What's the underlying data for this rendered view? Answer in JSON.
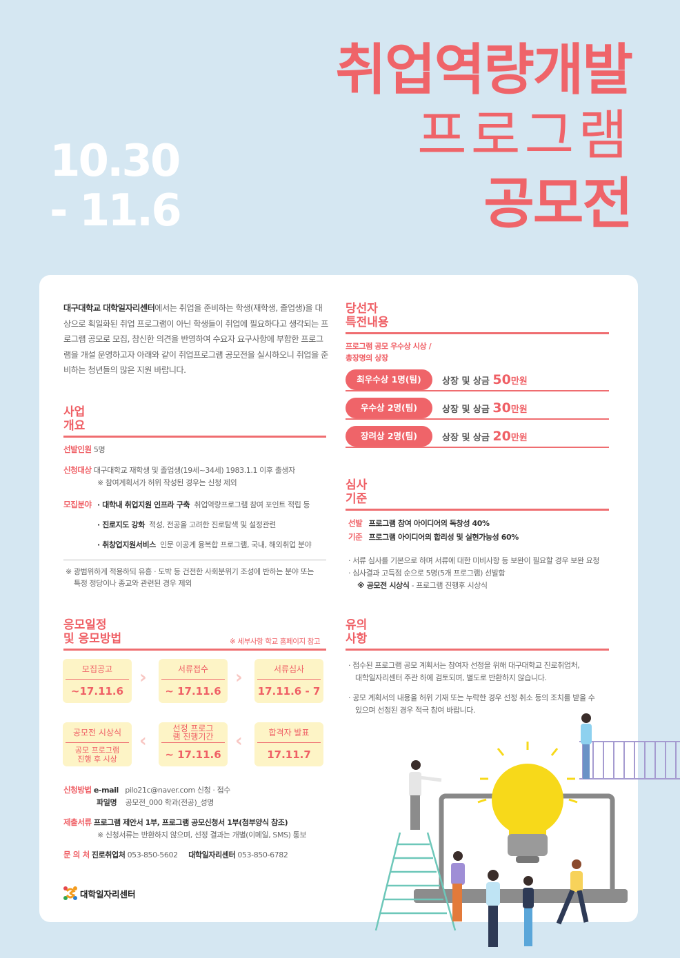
{
  "header": {
    "title_line1": "취업역량개발",
    "title_line2": "프로그램",
    "title_line3": "공모전",
    "date_line1": "10.30",
    "date_line2": "- 11.6"
  },
  "intro": {
    "bold": "대구대학교 대학일자리센터",
    "text": "에서는 취업을 준비하는 학생(재학생, 졸업생)을 대상으로 획일화된 취업 프로그램이 아닌 학생들이 취업에 필요하다고 생각되는 프로그램 공모로 모집, 참신한 의견을 반영하여 수요자 요구사항에 부합한 프로그램을 개설 운영하고자 아래와 같이 취업프로그램 공모전을 실시하오니 취업을 준비하는 청년들의 많은 지원 바랍니다."
  },
  "overview": {
    "heading1": "사업",
    "heading2": "개요",
    "selection_label": "선발인원",
    "selection_value": "5명",
    "target_label": "신청대상",
    "target_value": "대구대학교 재학생 및 졸업생(19세~34세) 1983.1.1 이후 출생자",
    "target_note": "※ 참여계획서가 허위 작성된 경우는 신청 제외",
    "field_label": "모집분야",
    "fields": [
      {
        "name": "· 대학내 취업지원 인프라 구축",
        "desc": "취업역량프로그램 참여 포인트 적립 등"
      },
      {
        "name": "· 진로지도 강화",
        "desc": "적성, 전공을 고려한 진로탐색 및 설정관련"
      },
      {
        "name": "· 취창업지원서비스",
        "desc": "인문 이공계 융복합 프로그램, 국내, 해외취업 분야"
      }
    ],
    "note_line1": "※ 광범위하게 적용하되 유흥 · 도박 등 건전한 사회분위기 조성에 반하는 분야 또는",
    "note_line2": "특정 정당이나 종교와 관련된 경우 제외"
  },
  "schedule": {
    "heading1": "응모일정",
    "heading2": "및 응모방법",
    "note": "※ 세부사항 학교 홈페이지 참고",
    "steps": [
      {
        "title": "모집공고",
        "value": "~17.11.6"
      },
      {
        "title": "서류접수",
        "value": "~ 17.11.6"
      },
      {
        "title": "서류심사",
        "value": "17.11.6 - 7"
      },
      {
        "title": "합격자 발표",
        "value": "17.11.7"
      },
      {
        "title": "선정 프로그램 진행기간",
        "value": "~ 17.11.6"
      },
      {
        "title": "공모전 시상식",
        "value": "공모 프로그램 진행 후 시상"
      }
    ],
    "method_label": "신청방법",
    "email_label": "e-mail",
    "email_value": "pilo21c@naver.com 신청 · 접수",
    "file_label": "파일명",
    "file_value": "공모전_000 학과(전공)_성명",
    "docs_label": "제출서류",
    "docs_value": "프로그램 제안서 1부, 프로그램 공모신청서 1부(첨부양식 참조)",
    "docs_note": "※ 신청서류는 반환하지 않으며, 선정 결과는 개별(이메일, SMS) 통보",
    "contact_label": "문 의 처",
    "contact1_name": "진로취업처",
    "contact1_phone": "053-850-5602",
    "contact2_name": "대학일자리센터",
    "contact2_phone": "053-850-6782"
  },
  "logo": {
    "text": "대학일자리센터"
  },
  "prizes": {
    "heading1": "당선자",
    "heading2": "특전내용",
    "sub1": "프로그램 공모 우수상 시상 /",
    "sub2": "총장명의 상장",
    "items": [
      {
        "award": "최우수상 1명(팀)",
        "prefix": "상장 및 상금 ",
        "amount": "50",
        "unit": "만원"
      },
      {
        "award": "우수상 2명(팀)",
        "prefix": "상장 및 상금 ",
        "amount": "30",
        "unit": "만원"
      },
      {
        "award": "장려상 2명(팀)",
        "prefix": "상장 및 상금 ",
        "amount": "20",
        "unit": "만원"
      }
    ]
  },
  "criteria": {
    "heading1": "심사",
    "heading2": "기준",
    "label1": "선발",
    "item1": "프로그램 참여 아이디어의 독창성 40%",
    "label2": "기준",
    "item2": "프로그램 아이디어의 합리성 및 실현가능성 60%",
    "note1": "· 서류 심사를 기본으로 하며 서류에 대한 미비사항 등 보완이 필요할 경우 보완 요청",
    "note2": "· 심사결과 고득점 순으로 5명(5개 프로그램) 선발함",
    "ceremony_bold": "※ 공모전 시상식",
    "ceremony_text": " -  프로그램 진행후 시상식"
  },
  "notice": {
    "heading1": "유의",
    "heading2": "사항",
    "item1_line1": "· 접수된 프로그램 공모 계획서는 참여자 선정을 위해 대구대학교 진로취업처,",
    "item1_line2": "대학일자리센터 주관 하에 검토되며, 별도로 반환하지 않습니다.",
    "item2_line1": "· 공모 계획서의 내용을 허위 기재 또는 누락한 경우 선정 취소 등의 조치를 받을 수",
    "item2_line2": "있으며 선정된 경우 적극 참여 바랍니다."
  },
  "colors": {
    "accent": "#ef6469",
    "background": "#d5e7f2",
    "box": "#fdf4c6",
    "bulb": "#f7d91a"
  }
}
